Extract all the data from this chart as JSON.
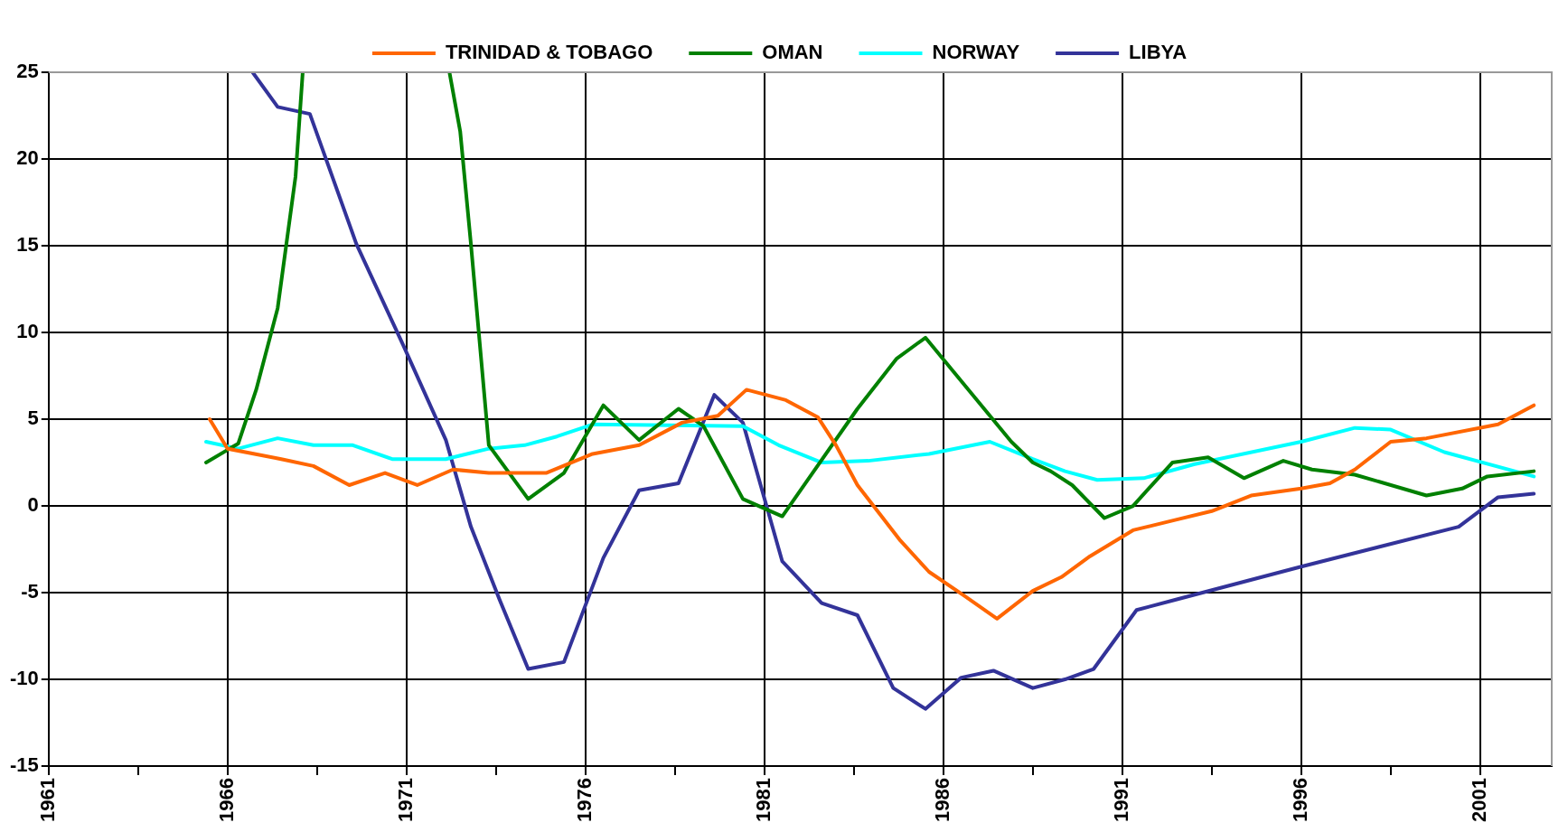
{
  "chart_data": {
    "type": "line",
    "xlim": [
      1961,
      2003
    ],
    "xticks": [
      1961,
      {
        "value": 1963.5,
        "label": null
      },
      1966,
      {
        "value": 1968.5,
        "label": null
      },
      1971,
      {
        "value": 1973.5,
        "label": null
      },
      1976,
      {
        "value": 1978.5,
        "label": null
      },
      1981,
      {
        "value": 1983.5,
        "label": null
      },
      1986,
      {
        "value": 1988.5,
        "label": null
      },
      1991,
      {
        "value": 1993.5,
        "label": null
      },
      1996,
      {
        "value": 1998.5,
        "label": null
      },
      2001
    ],
    "ylim": [
      -15,
      25
    ],
    "yticks": [
      -15,
      -10,
      -5,
      0,
      5,
      10,
      15,
      20,
      25
    ],
    "grid": true,
    "legend": "top",
    "marker": "none",
    "line_style": "solid",
    "series": [
      {
        "name": "TRINIDAD & TOBAGO",
        "color": "#ff6600",
        "x": [
          1965.5,
          1966,
          1967.5,
          1968.4,
          1969.4,
          1970.4,
          1971.3,
          1972.3,
          1973.3,
          1974.9,
          1976.2,
          1977.5,
          1978.7,
          1979.7,
          1980.5,
          1981.6,
          1982.5,
          1983,
          1983.6,
          1984.8,
          1985.6,
          1986.6,
          1987.5,
          1988.5,
          1989.3,
          1990.1,
          1991.3,
          1992.5,
          1993.5,
          1994.6,
          1996,
          1996.8,
          1997.5,
          1998.5,
          1999.5,
          2001.5,
          2002.5
        ],
        "values": [
          5,
          3.3,
          2.7,
          2.3,
          1.2,
          1.9,
          1.2,
          2.1,
          1.9,
          1.9,
          3,
          3.5,
          4.8,
          5.2,
          6.7,
          6.1,
          5.1,
          3.5,
          1.2,
          -2,
          -3.8,
          -5.2,
          -6.5,
          -4.9,
          -4.1,
          -2.9,
          -1.4,
          -0.8,
          -0.3,
          0.6,
          1,
          1.3,
          2.1,
          3.7,
          3.9,
          4.7,
          5.8
        ]
      },
      {
        "name": "OMAN",
        "color": "#008000",
        "x": [
          1965.4,
          1966.3,
          1966.8,
          1967.4,
          1967.9,
          1968.1,
          1970,
          1972.2,
          1972.5,
          1972.8,
          1973.3,
          1974.4,
          1975.4,
          1976.5,
          1977.5,
          1978.6,
          1979.3,
          1980.4,
          1981.5,
          1983.6,
          1984.7,
          1985.5,
          1987.9,
          1988.5,
          1989,
          1989.6,
          1990.5,
          1991.3,
          1992.4,
          1993.4,
          1993.9,
          1994.4,
          1995.5,
          1996.3,
          1997.5,
          1999.5,
          2000.5,
          2001.2,
          2002.5
        ],
        "values": [
          2.5,
          3.6,
          6.7,
          11.4,
          19,
          25,
          null,
          25,
          21.6,
          15.1,
          3.5,
          0.4,
          1.9,
          5.8,
          3.8,
          5.6,
          4.6,
          0.4,
          -0.6,
          5.6,
          8.5,
          9.7,
          3.7,
          2.5,
          2,
          1.2,
          -0.7,
          0,
          2.5,
          2.8,
          2.2,
          1.6,
          2.6,
          2.1,
          1.8,
          0.6,
          1,
          1.7,
          2
        ]
      },
      {
        "name": "NORWAY",
        "color": "#00ffff",
        "x": [
          1965.4,
          1966.3,
          1967.4,
          1968.4,
          1969.5,
          1970.6,
          1972.1,
          1973.3,
          1974.3,
          1975.2,
          1976.2,
          1980.4,
          1981.4,
          1982.6,
          1983.9,
          1985.6,
          1987.3,
          1988.5,
          1989.4,
          1990.3,
          1991.6,
          1993,
          1996,
          1997.5,
          1998.5,
          2000,
          2002.5
        ],
        "values": [
          3.7,
          3.3,
          3.9,
          3.5,
          3.5,
          2.7,
          2.7,
          3.3,
          3.5,
          4,
          4.7,
          4.6,
          3.5,
          2.5,
          2.6,
          3,
          3.7,
          2.7,
          2,
          1.5,
          1.6,
          2.4,
          3.7,
          4.5,
          4.4,
          3.1,
          1.7
        ]
      },
      {
        "name": "LIBYA",
        "color": "#333399",
        "x": [
          1966.7,
          1967.4,
          1968.3,
          1969.6,
          1970.9,
          1972.1,
          1972.8,
          1973.6,
          1974.4,
          1975.4,
          1976.5,
          1977.5,
          1978.6,
          1979.6,
          1980.4,
          1981.5,
          1982.6,
          1983.6,
          1984.6,
          1985.5,
          1986.5,
          1987.4,
          1988.5,
          1989.4,
          1990.2,
          1991.4,
          1992.5,
          1996,
          2000.4,
          2001.5,
          2002.5
        ],
        "values": [
          25,
          23,
          22.6,
          15.1,
          9.3,
          3.8,
          -1.2,
          -5.4,
          -9.4,
          -9,
          -3,
          0.9,
          1.3,
          6.4,
          4.8,
          -3.2,
          -5.6,
          -6.3,
          -10.5,
          -11.7,
          -9.9,
          -9.5,
          -10.5,
          -10,
          -9.4,
          -6,
          -5.4,
          -3.5,
          -1.2,
          0.5,
          0.7
        ]
      }
    ]
  }
}
